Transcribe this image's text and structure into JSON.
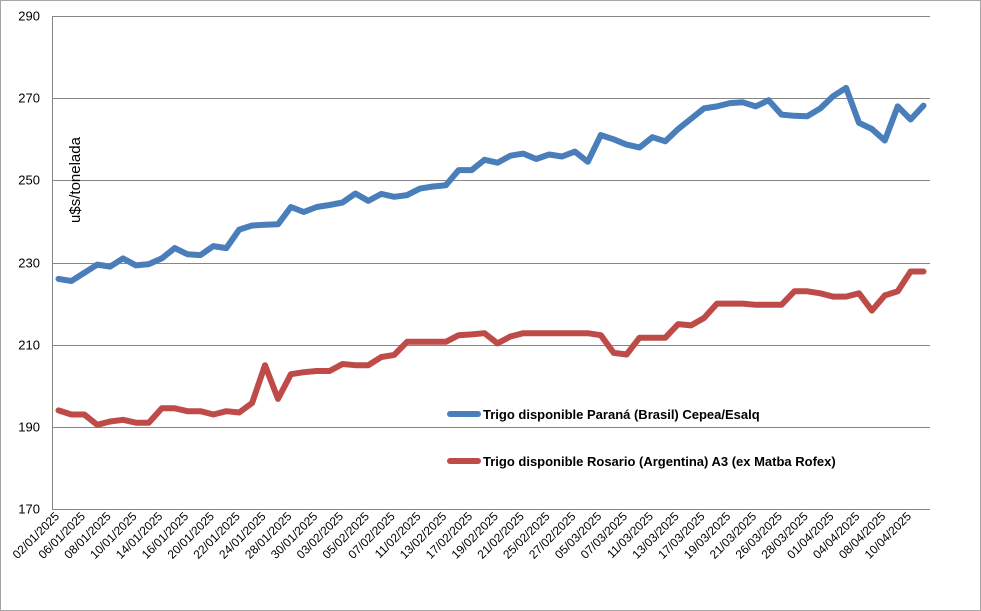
{
  "chart_data": {
    "type": "line",
    "title": "",
    "xlabel": "",
    "ylabel": "u$s/tonelada",
    "ylim": [
      170,
      290
    ],
    "yticks": [
      170,
      190,
      210,
      230,
      250,
      270,
      290
    ],
    "grid": true,
    "legend_position": "center-right",
    "x_tick_labels": [
      "02/01/2025",
      "06/01/2025",
      "08/01/2025",
      "10/01/2025",
      "14/01/2025",
      "16/01/2025",
      "20/01/2025",
      "22/01/2025",
      "24/01/2025",
      "28/01/2025",
      "30/01/2025",
      "03/02/2025",
      "05/02/2025",
      "07/02/2025",
      "11/02/2025",
      "13/02/2025",
      "17/02/2025",
      "19/02/2025",
      "21/02/2025",
      "25/02/2025",
      "27/02/2025",
      "05/03/2025",
      "07/03/2025",
      "11/03/2025",
      "13/03/2025",
      "17/03/2025",
      "19/03/2025",
      "21/03/2025",
      "26/03/2025",
      "28/03/2025",
      "01/04/2025",
      "04/04/2025",
      "08/04/2025",
      "10/04/2025"
    ],
    "series": [
      {
        "name": "Trigo disponible Paraná (Brasil) Cepea/Esalq",
        "color": "#4a7ebb",
        "values": [
          226,
          225.5,
          227.5,
          229.5,
          229,
          231,
          229.3,
          229.6,
          231,
          233.5,
          232,
          231.8,
          234,
          233.5,
          238,
          239,
          239.2,
          239.3,
          243.5,
          242.3,
          243.5,
          244,
          244.6,
          246.8,
          245,
          246.7,
          246,
          246.4,
          248,
          248.5,
          248.8,
          252.5,
          252.5,
          255,
          254.3,
          256,
          256.5,
          255.2,
          256.3,
          255.8,
          257,
          254.5,
          261,
          260,
          258.7,
          258,
          260.5,
          259.5,
          262.5,
          265,
          267.5,
          268,
          268.8,
          269,
          268,
          269.5,
          266,
          265.7,
          265.6,
          267.5,
          270.5,
          272.5,
          264,
          262.5,
          259.7,
          268,
          264.8,
          268.2
        ]
      },
      {
        "name": "Trigo disponible Rosario (Argentina) A3 (ex Matba Rofex)",
        "color": "#be4b48",
        "values": [
          194,
          193,
          193,
          190.5,
          191.3,
          191.7,
          191,
          191,
          194.5,
          194.5,
          193.8,
          193.8,
          193,
          193.8,
          193.5,
          195.8,
          205,
          196.8,
          202.8,
          203.3,
          203.6,
          203.6,
          205.3,
          205,
          205,
          207,
          207.5,
          210.7,
          210.7,
          210.7,
          210.7,
          212.3,
          212.5,
          212.8,
          210.3,
          212,
          212.8,
          212.8,
          212.8,
          212.8,
          212.8,
          212.8,
          212.3,
          208,
          207.6,
          211.7,
          211.7,
          211.7,
          215,
          214.7,
          216.5,
          220,
          220,
          220,
          219.7,
          219.7,
          219.7,
          223,
          223,
          222.5,
          221.7,
          221.7,
          222.5,
          218.3,
          222,
          223,
          227.8,
          227.8
        ]
      }
    ]
  }
}
